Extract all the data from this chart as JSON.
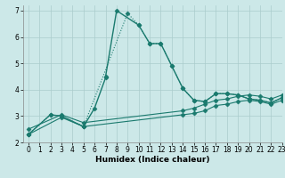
{
  "title": "",
  "xlabel": "Humidex (Indice chaleur)",
  "bg_color": "#cce8e8",
  "grid_color": "#aacccc",
  "line_color": "#1a7a6e",
  "xlim": [
    -0.5,
    23
  ],
  "ylim": [
    2,
    7.2
  ],
  "yticks": [
    2,
    3,
    4,
    5,
    6,
    7
  ],
  "xticks": [
    0,
    1,
    2,
    3,
    4,
    5,
    6,
    7,
    8,
    9,
    10,
    11,
    12,
    13,
    14,
    15,
    16,
    17,
    18,
    19,
    20,
    21,
    22,
    23
  ],
  "series": [
    {
      "x": [
        0,
        2,
        3,
        5,
        6,
        7,
        7,
        8,
        10,
        11,
        12,
        13,
        14,
        15,
        16,
        17,
        18,
        19,
        20,
        21,
        22,
        23
      ],
      "y": [
        2.3,
        3.05,
        3.0,
        2.6,
        3.3,
        4.45,
        4.5,
        7.0,
        6.45,
        5.75,
        5.75,
        4.9,
        4.05,
        3.6,
        3.55,
        3.85,
        3.85,
        3.8,
        3.65,
        3.6,
        3.5,
        3.7
      ],
      "marker": "D",
      "markersize": 2.5,
      "linewidth": 1.0,
      "linestyle": "solid"
    },
    {
      "x": [
        0,
        2,
        3,
        5,
        9,
        10,
        11,
        12,
        13,
        14,
        15,
        16,
        17,
        18,
        19,
        20,
        21,
        22,
        23
      ],
      "y": [
        2.3,
        3.05,
        3.0,
        2.6,
        6.9,
        6.45,
        5.75,
        5.75,
        4.9,
        4.05,
        3.6,
        3.55,
        3.85,
        3.85,
        3.8,
        3.65,
        3.6,
        3.5,
        3.7
      ],
      "marker": "D",
      "markersize": 2.5,
      "linewidth": 0.8,
      "linestyle": "dotted"
    },
    {
      "x": [
        0,
        3,
        5,
        14,
        15,
        16,
        17,
        18,
        19,
        20,
        21,
        22,
        23
      ],
      "y": [
        2.5,
        3.05,
        2.75,
        3.2,
        3.3,
        3.45,
        3.6,
        3.65,
        3.75,
        3.8,
        3.75,
        3.65,
        3.8
      ],
      "marker": "D",
      "markersize": 2.5,
      "linewidth": 0.8,
      "linestyle": "solid"
    },
    {
      "x": [
        0,
        3,
        5,
        14,
        15,
        16,
        17,
        18,
        19,
        20,
        21,
        22,
        23
      ],
      "y": [
        2.3,
        2.95,
        2.6,
        3.05,
        3.1,
        3.2,
        3.4,
        3.45,
        3.55,
        3.6,
        3.55,
        3.45,
        3.6
      ],
      "marker": "D",
      "markersize": 2.5,
      "linewidth": 0.8,
      "linestyle": "solid"
    }
  ]
}
